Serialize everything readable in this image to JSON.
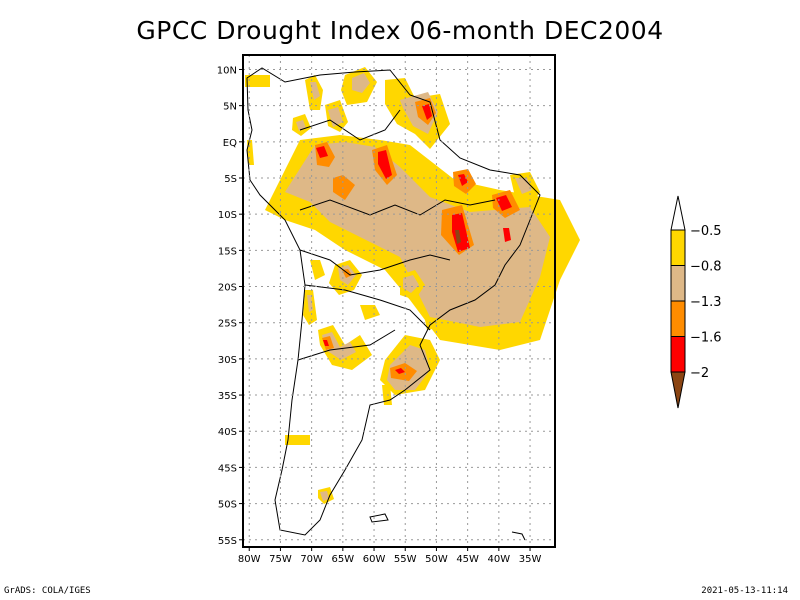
{
  "title": "GPCC Drought Index 06-month DEC2004",
  "footer": {
    "left": "GrADS: COLA/IGES",
    "right": "2021-05-13-11:14"
  },
  "map": {
    "region": "South America",
    "lon_range": [
      -81,
      -31
    ],
    "lat_range": [
      12,
      -56
    ],
    "lon_ticks": [
      "80W",
      "75W",
      "70W",
      "65W",
      "60W",
      "55W",
      "50W",
      "45W",
      "40W",
      "35W"
    ],
    "lon_values": [
      -80,
      -75,
      -70,
      -65,
      -60,
      -55,
      -50,
      -45,
      -40,
      -35
    ],
    "lat_ticks": [
      "10N",
      "5N",
      "EQ",
      "5S",
      "10S",
      "15S",
      "20S",
      "25S",
      "30S",
      "35S",
      "40S",
      "45S",
      "50S",
      "55S"
    ],
    "lat_values": [
      10,
      5,
      0,
      -5,
      -10,
      -15,
      -20,
      -25,
      -30,
      -35,
      -40,
      -45,
      -50,
      -55
    ],
    "gridlines": "dotted"
  },
  "colorbar": {
    "orientation": "vertical",
    "levels": [
      "-0.5",
      "-0.8",
      "-1.3",
      "-1.6",
      "-2"
    ],
    "bins": [
      {
        "label": "> -0.5",
        "color": "#ffffff"
      },
      {
        "label": "-0.8 to -0.5",
        "color": "#ffd700"
      },
      {
        "label": "-1.3 to -0.8",
        "color": "#deb887"
      },
      {
        "label": "-1.6 to -1.3",
        "color": "#ff8c00"
      },
      {
        "label": "-2 to -1.6",
        "color": "#ff0000"
      },
      {
        "label": "< -2",
        "color": "#8b4513"
      }
    ]
  }
}
